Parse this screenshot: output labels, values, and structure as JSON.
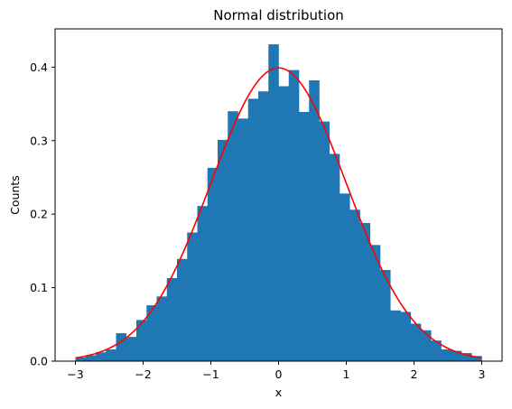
{
  "chart_data": {
    "type": "bar",
    "title": "Normal distribution",
    "xlabel": "x",
    "ylabel": "Counts",
    "xlim": [
      -3.3,
      3.3
    ],
    "ylim": [
      0.0,
      0.452
    ],
    "xticks": [
      -3,
      -2,
      -1,
      0,
      1,
      2,
      3
    ],
    "xtick_labels": [
      "−3",
      "−2",
      "−1",
      "0",
      "1",
      "2",
      "3"
    ],
    "yticks": [
      0.0,
      0.1,
      0.2,
      0.3,
      0.4
    ],
    "ytick_labels": [
      "0.0",
      "0.1",
      "0.2",
      "0.3",
      "0.4"
    ],
    "grid": false,
    "legend": "none",
    "histogram": {
      "bin_start": -3.0,
      "bin_width": 0.15,
      "values": [
        0.005,
        0.008,
        0.012,
        0.016,
        0.038,
        0.033,
        0.056,
        0.076,
        0.088,
        0.113,
        0.139,
        0.175,
        0.211,
        0.263,
        0.301,
        0.34,
        0.33,
        0.357,
        0.367,
        0.431,
        0.374,
        0.396,
        0.339,
        0.382,
        0.326,
        0.282,
        0.228,
        0.206,
        0.188,
        0.158,
        0.124,
        0.069,
        0.067,
        0.051,
        0.042,
        0.028,
        0.016,
        0.014,
        0.011,
        0.007
      ],
      "color": "#1f77b4"
    },
    "curve": {
      "type": "line",
      "function": "normal_pdf",
      "mean": 0,
      "std": 1,
      "x_range": [
        -3,
        3
      ],
      "color": "#ff0000"
    }
  }
}
